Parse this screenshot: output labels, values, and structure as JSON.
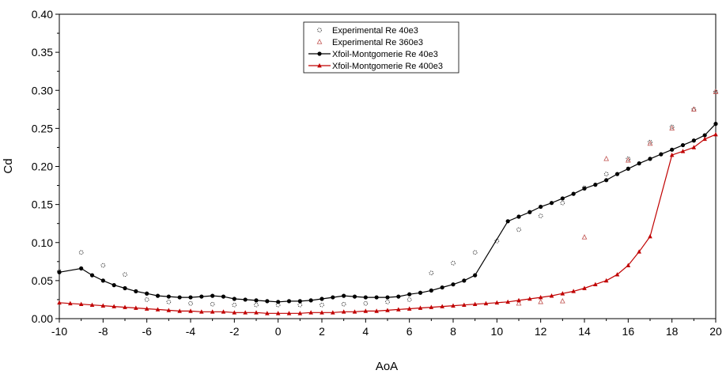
{
  "chart_data": {
    "type": "scatter",
    "title": "",
    "xlabel": "AoA",
    "ylabel": "Cd",
    "xlim": [
      -10,
      20
    ],
    "ylim": [
      0,
      0.4
    ],
    "x_ticks": [
      "-10",
      "-8",
      "-6",
      "-4",
      "-2",
      "0",
      "2",
      "4",
      "6",
      "8",
      "10",
      "12",
      "14",
      "16",
      "18",
      "20"
    ],
    "y_ticks": [
      "0.00",
      "0.05",
      "0.10",
      "0.15",
      "0.20",
      "0.25",
      "0.30",
      "0.35",
      "0.40"
    ],
    "grid": false,
    "legend_position": "top-center",
    "series": [
      {
        "name": "Experimental Re 40e3",
        "style": "open-circle",
        "color": "#333333",
        "x": [
          -10,
          -9,
          -8,
          -7,
          -6,
          -5,
          -4,
          -3,
          -2,
          -1,
          0,
          1,
          2,
          3,
          4,
          5,
          6,
          7,
          8,
          9,
          10,
          11,
          12,
          13,
          14,
          15,
          16,
          17,
          18,
          19,
          20
        ],
        "y": [
          0.062,
          0.087,
          0.07,
          0.058,
          0.025,
          0.022,
          0.02,
          0.019,
          0.018,
          0.018,
          0.018,
          0.018,
          0.018,
          0.019,
          0.02,
          0.022,
          0.025,
          0.06,
          0.073,
          0.087,
          0.102,
          0.117,
          0.135,
          0.152,
          0.172,
          0.19,
          0.21,
          0.232,
          0.252,
          0.275,
          0.298
        ]
      },
      {
        "name": "Experimental Re 360e3",
        "style": "open-triangle",
        "color": "#c0504d",
        "x": [
          11,
          12,
          13,
          14,
          15,
          16,
          17,
          18,
          19,
          20
        ],
        "y": [
          0.02,
          0.022,
          0.023,
          0.107,
          0.21,
          0.208,
          0.23,
          0.25,
          0.275,
          0.298
        ]
      },
      {
        "name": "Xfoil-Montgomerie Re 40e3",
        "style": "line-filled-circle",
        "color": "#000000",
        "x": [
          -10,
          -9,
          -8.5,
          -8,
          -7.5,
          -7,
          -6.5,
          -6,
          -5.5,
          -5,
          -4.5,
          -4,
          -3.5,
          -3,
          -2.5,
          -2,
          -1.5,
          -1,
          -0.5,
          0,
          0.5,
          1,
          1.5,
          2,
          2.5,
          3,
          3.5,
          4,
          4.5,
          5,
          5.5,
          6,
          6.5,
          7,
          7.5,
          8,
          8.5,
          9,
          10.5,
          11,
          11.5,
          12,
          12.5,
          13,
          13.5,
          14,
          14.5,
          15,
          15.5,
          16,
          16.5,
          17,
          17.5,
          18,
          18.5,
          19,
          19.5,
          20
        ],
        "y": [
          0.061,
          0.066,
          0.057,
          0.05,
          0.044,
          0.04,
          0.036,
          0.033,
          0.03,
          0.029,
          0.028,
          0.028,
          0.029,
          0.03,
          0.029,
          0.026,
          0.025,
          0.024,
          0.023,
          0.022,
          0.023,
          0.023,
          0.024,
          0.026,
          0.028,
          0.03,
          0.029,
          0.028,
          0.028,
          0.028,
          0.029,
          0.032,
          0.034,
          0.037,
          0.041,
          0.045,
          0.05,
          0.057,
          0.128,
          0.134,
          0.14,
          0.147,
          0.152,
          0.158,
          0.164,
          0.171,
          0.176,
          0.182,
          0.19,
          0.197,
          0.204,
          0.21,
          0.216,
          0.222,
          0.228,
          0.234,
          0.241,
          0.256
        ]
      },
      {
        "name": "Xfoil-Montgomerie Re 400e3",
        "style": "line-filled-triangle",
        "color": "#c00000",
        "x": [
          -10,
          -9.5,
          -9,
          -8.5,
          -8,
          -7.5,
          -7,
          -6.5,
          -6,
          -5.5,
          -5,
          -4.5,
          -4,
          -3.5,
          -3,
          -2.5,
          -2,
          -1.5,
          -1,
          -0.5,
          0,
          0.5,
          1,
          1.5,
          2,
          2.5,
          3,
          3.5,
          4,
          4.5,
          5,
          5.5,
          6,
          6.5,
          7,
          7.5,
          8,
          8.5,
          9,
          9.5,
          10,
          10.5,
          11,
          11.5,
          12,
          12.5,
          13,
          13.5,
          14,
          14.5,
          15,
          15.5,
          16,
          16.5,
          17,
          18,
          18.5,
          19,
          19.5,
          20
        ],
        "y": [
          0.021,
          0.02,
          0.019,
          0.018,
          0.017,
          0.016,
          0.015,
          0.014,
          0.013,
          0.012,
          0.011,
          0.01,
          0.01,
          0.009,
          0.009,
          0.009,
          0.008,
          0.008,
          0.008,
          0.007,
          0.007,
          0.007,
          0.007,
          0.008,
          0.008,
          0.008,
          0.009,
          0.009,
          0.01,
          0.01,
          0.011,
          0.012,
          0.013,
          0.014,
          0.015,
          0.016,
          0.017,
          0.018,
          0.019,
          0.02,
          0.021,
          0.022,
          0.024,
          0.026,
          0.028,
          0.03,
          0.033,
          0.036,
          0.04,
          0.045,
          0.05,
          0.058,
          0.07,
          0.088,
          0.108,
          0.215,
          0.22,
          0.225,
          0.236,
          0.242
        ]
      }
    ]
  }
}
